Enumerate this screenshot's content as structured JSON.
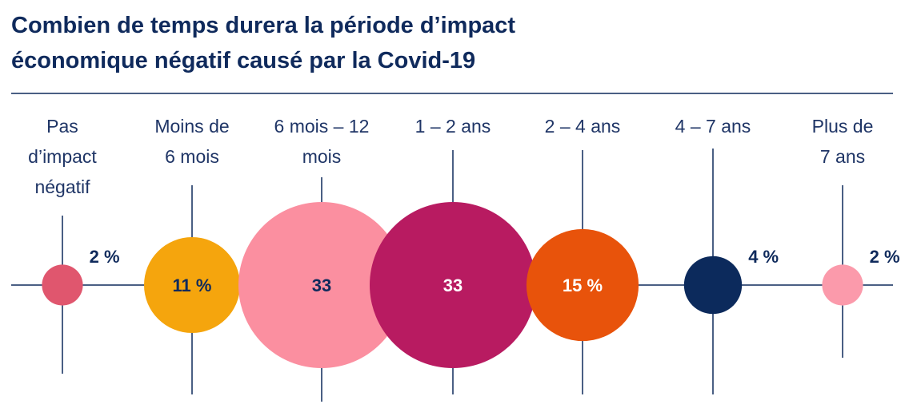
{
  "title_lines": [
    "Combien de temps durera la période d’impact",
    "économique négatif causé par la Covid-19"
  ],
  "colors": {
    "title": "#0f2a5c",
    "axis": "#0f2a5c",
    "category_text": "#1f3566"
  },
  "chart_data": {
    "type": "bubble",
    "title": "Combien de temps durera la période d’impact économique négatif causé par la Covid-19",
    "unit": "%",
    "points": [
      {
        "category": "Pas d’impact négatif",
        "label_lines": [
          "Pas",
          "d’impact",
          "négatif"
        ],
        "value": 2,
        "value_label": "2 %",
        "label_position": "right",
        "color": "#e0566e",
        "label_color": "#0f2a5c"
      },
      {
        "category": "Moins de 6 mois",
        "label_lines": [
          "Moins de",
          "6 mois"
        ],
        "value": 11,
        "value_label": "11 %",
        "label_position": "inside",
        "color": "#f5a50d",
        "label_color": "#0f2a5c"
      },
      {
        "category": "6 mois – 12 mois",
        "label_lines": [
          "6 mois – 12",
          "mois"
        ],
        "value": 33,
        "value_label": "33",
        "label_position": "inside",
        "color": "#fb8fa0",
        "label_color": "#0f2a5c"
      },
      {
        "category": "1 – 2 ans",
        "label_lines": [
          "1 – 2 ans"
        ],
        "value": 33,
        "value_label": "33",
        "label_position": "inside",
        "color": "#b81b61",
        "label_color": "#ffffff"
      },
      {
        "category": "2 – 4 ans",
        "label_lines": [
          "2 – 4 ans"
        ],
        "value": 15,
        "value_label": "15 %",
        "label_position": "inside",
        "color": "#e8530b",
        "label_color": "#ffffff"
      },
      {
        "category": "4 – 7 ans",
        "label_lines": [
          "4 – 7 ans"
        ],
        "value": 4,
        "value_label": "4 %",
        "label_position": "right",
        "color": "#0c2a5c",
        "label_color": "#0f2a5c"
      },
      {
        "category": "Plus de 7 ans",
        "label_lines": [
          "Plus de",
          "7 ans"
        ],
        "value": 2,
        "value_label": "2 %",
        "label_position": "right",
        "color": "#fb9aab",
        "label_color": "#0f2a5c"
      }
    ]
  }
}
